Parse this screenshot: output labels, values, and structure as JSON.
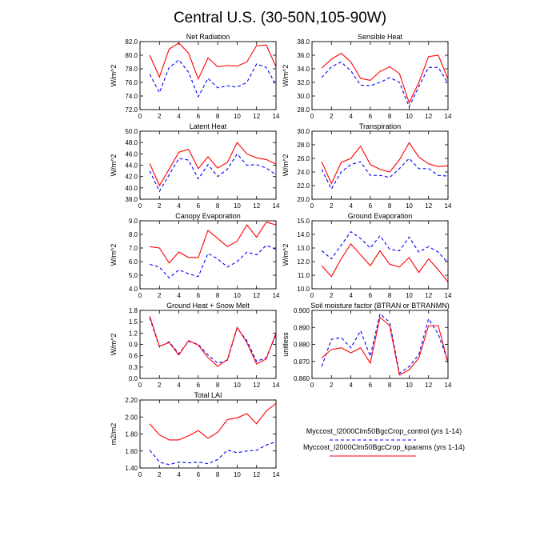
{
  "title": "Central U.S. (30-50N,105-90W)",
  "legend": [
    {
      "name": "Myccost_I2000Clm50BgcCrop_control (yrs 1-14)",
      "color": "#0000ff",
      "dashed": true
    },
    {
      "name": "Myccost_I2000Clm50BgcCrop_kparams (yrs 1-14)",
      "color": "#ff0000",
      "dashed": false
    }
  ],
  "chart_data": [
    {
      "type": "line",
      "title": "Net Radiation",
      "ylabel": "W/m^2",
      "x": [
        1,
        2,
        3,
        4,
        5,
        6,
        7,
        8,
        9,
        10,
        11,
        12,
        13,
        14
      ],
      "xlim": [
        0,
        14
      ],
      "xticks": [
        0,
        2,
        4,
        6,
        8,
        10,
        12,
        14
      ],
      "ylim": [
        72,
        82
      ],
      "yticks": [
        {
          "value": 72,
          "label": "72.0"
        },
        {
          "value": 74,
          "label": "74.0"
        },
        {
          "value": 76,
          "label": "76.0"
        },
        {
          "value": 78,
          "label": "78.0"
        },
        {
          "value": 80,
          "label": "80.0"
        },
        {
          "value": 82,
          "label": "82.0"
        }
      ],
      "series": [
        {
          "color": "#0000ff",
          "dashed": true,
          "values": [
            77.2,
            74.5,
            78.2,
            79.3,
            77.5,
            73.9,
            76.6,
            75.2,
            75.5,
            75.3,
            76.0,
            78.7,
            78.2,
            75.6
          ]
        },
        {
          "color": "#ff0000",
          "dashed": false,
          "values": [
            80.0,
            76.8,
            80.9,
            81.8,
            80.3,
            76.5,
            79.6,
            78.3,
            78.5,
            78.4,
            79.0,
            81.4,
            81.5,
            78.3
          ]
        }
      ]
    },
    {
      "type": "line",
      "title": "Sensible Heat",
      "ylabel": "W/m^2",
      "x": [
        1,
        2,
        3,
        4,
        5,
        6,
        7,
        8,
        9,
        10,
        11,
        12,
        13,
        14
      ],
      "xlim": [
        0,
        14
      ],
      "xticks": [
        0,
        2,
        4,
        6,
        8,
        10,
        12,
        14
      ],
      "ylim": [
        28,
        38
      ],
      "yticks": [
        {
          "value": 28,
          "label": "28.0"
        },
        {
          "value": 30,
          "label": "30.0"
        },
        {
          "value": 32,
          "label": "32.0"
        },
        {
          "value": 34,
          "label": "34.0"
        },
        {
          "value": 36,
          "label": "36.0"
        },
        {
          "value": 38,
          "label": "38.0"
        }
      ],
      "series": [
        {
          "color": "#0000ff",
          "dashed": true,
          "values": [
            32.7,
            34.3,
            35.0,
            33.7,
            31.6,
            31.5,
            32.0,
            32.7,
            32.0,
            28.4,
            31.4,
            34.2,
            34.2,
            31.9
          ]
        },
        {
          "color": "#ff0000",
          "dashed": false,
          "values": [
            34.1,
            35.4,
            36.3,
            35.0,
            32.6,
            32.3,
            33.6,
            34.3,
            33.3,
            29.0,
            32.0,
            35.8,
            36.0,
            32.5
          ]
        }
      ]
    },
    {
      "type": "line",
      "title": "Latent Heat",
      "ylabel": "W/m^2",
      "x": [
        1,
        2,
        3,
        4,
        5,
        6,
        7,
        8,
        9,
        10,
        11,
        12,
        13,
        14
      ],
      "xlim": [
        0,
        14
      ],
      "xticks": [
        0,
        2,
        4,
        6,
        8,
        10,
        12,
        14
      ],
      "ylim": [
        38,
        50
      ],
      "yticks": [
        {
          "value": 38,
          "label": "38.0"
        },
        {
          "value": 40,
          "label": "40.0"
        },
        {
          "value": 42,
          "label": "42.0"
        },
        {
          "value": 44,
          "label": "44.0"
        },
        {
          "value": 46,
          "label": "46.0"
        },
        {
          "value": 48,
          "label": "48.0"
        },
        {
          "value": 50,
          "label": "50.0"
        }
      ],
      "series": [
        {
          "color": "#0000ff",
          "dashed": true,
          "values": [
            43.0,
            39.4,
            42.3,
            45.2,
            44.9,
            41.6,
            44.1,
            42.0,
            43.3,
            46.0,
            44.0,
            44.1,
            43.5,
            42.3
          ]
        },
        {
          "color": "#ff0000",
          "dashed": false,
          "values": [
            44.3,
            40.4,
            43.3,
            46.3,
            46.8,
            43.4,
            45.5,
            43.5,
            44.5,
            48.0,
            46.0,
            45.3,
            45.0,
            44.2
          ]
        }
      ]
    },
    {
      "type": "line",
      "title": "Transpiration",
      "ylabel": "W/m^2",
      "x": [
        1,
        2,
        3,
        4,
        5,
        6,
        7,
        8,
        9,
        10,
        11,
        12,
        13,
        14
      ],
      "xlim": [
        0,
        14
      ],
      "xticks": [
        0,
        2,
        4,
        6,
        8,
        10,
        12,
        14
      ],
      "ylim": [
        20,
        30
      ],
      "yticks": [
        {
          "value": 20,
          "label": "20.0"
        },
        {
          "value": 22,
          "label": "22.0"
        },
        {
          "value": 24,
          "label": "24.0"
        },
        {
          "value": 26,
          "label": "26.0"
        },
        {
          "value": 28,
          "label": "28.0"
        },
        {
          "value": 30,
          "label": "30.0"
        }
      ],
      "series": [
        {
          "color": "#0000ff",
          "dashed": true,
          "values": [
            24.4,
            21.5,
            24.0,
            25.1,
            25.5,
            23.5,
            23.5,
            23.2,
            24.5,
            26.0,
            24.5,
            24.5,
            23.5,
            23.4
          ]
        },
        {
          "color": "#ff0000",
          "dashed": false,
          "values": [
            25.5,
            22.3,
            25.4,
            26.0,
            27.8,
            25.1,
            24.4,
            24.0,
            25.8,
            28.3,
            26.2,
            25.2,
            24.8,
            24.9
          ]
        }
      ]
    },
    {
      "type": "line",
      "title": "Canopy Evaporation",
      "ylabel": "W/m^2",
      "x": [
        1,
        2,
        3,
        4,
        5,
        6,
        7,
        8,
        9,
        10,
        11,
        12,
        13,
        14
      ],
      "xlim": [
        0,
        14
      ],
      "xticks": [
        0,
        2,
        4,
        6,
        8,
        10,
        12,
        14
      ],
      "ylim": [
        4,
        9
      ],
      "yticks": [
        {
          "value": 4,
          "label": "4.0"
        },
        {
          "value": 5,
          "label": "5.0"
        },
        {
          "value": 6,
          "label": "6.0"
        },
        {
          "value": 7,
          "label": "7.0"
        },
        {
          "value": 8,
          "label": "8.0"
        },
        {
          "value": 9,
          "label": "9.0"
        }
      ],
      "series": [
        {
          "color": "#0000ff",
          "dashed": true,
          "values": [
            5.8,
            5.6,
            4.8,
            5.4,
            5.1,
            4.9,
            6.6,
            6.2,
            5.6,
            6.0,
            6.7,
            6.5,
            7.2,
            6.9
          ]
        },
        {
          "color": "#ff0000",
          "dashed": false,
          "values": [
            7.1,
            7.0,
            5.9,
            6.7,
            6.3,
            6.3,
            8.3,
            7.7,
            7.1,
            7.5,
            8.7,
            7.8,
            8.9,
            8.7
          ]
        }
      ]
    },
    {
      "type": "line",
      "title": "Ground Evaporation",
      "ylabel": "W/m^2",
      "x": [
        1,
        2,
        3,
        4,
        5,
        6,
        7,
        8,
        9,
        10,
        11,
        12,
        13,
        14
      ],
      "xlim": [
        0,
        14
      ],
      "xticks": [
        0,
        2,
        4,
        6,
        8,
        10,
        12,
        14
      ],
      "ylim": [
        10,
        15
      ],
      "yticks": [
        {
          "value": 10,
          "label": "10.0"
        },
        {
          "value": 11,
          "label": "11.0"
        },
        {
          "value": 12,
          "label": "12.0"
        },
        {
          "value": 13,
          "label": "13.0"
        },
        {
          "value": 14,
          "label": "14.0"
        },
        {
          "value": 15,
          "label": "15.0"
        }
      ],
      "series": [
        {
          "color": "#0000ff",
          "dashed": true,
          "values": [
            12.8,
            12.2,
            13.2,
            14.2,
            13.7,
            13.0,
            13.9,
            12.9,
            12.8,
            13.8,
            12.7,
            13.1,
            12.7,
            11.9
          ]
        },
        {
          "color": "#ff0000",
          "dashed": false,
          "values": [
            11.7,
            10.9,
            12.2,
            13.3,
            12.5,
            11.7,
            12.8,
            11.8,
            11.6,
            12.3,
            11.2,
            12.2,
            11.4,
            10.5
          ]
        }
      ]
    },
    {
      "type": "line",
      "title": "Ground Heat + Snow Melt",
      "ylabel": "W/m^2",
      "x": [
        1,
        2,
        3,
        4,
        5,
        6,
        7,
        8,
        9,
        10,
        11,
        12,
        13,
        14
      ],
      "xlim": [
        0,
        14
      ],
      "xticks": [
        0,
        2,
        4,
        6,
        8,
        10,
        12,
        14
      ],
      "ylim": [
        0,
        1.8
      ],
      "yticks": [
        {
          "value": 0,
          "label": "0.0"
        },
        {
          "value": 0.3,
          "label": "0.3"
        },
        {
          "value": 0.6,
          "label": "0.6"
        },
        {
          "value": 0.9,
          "label": "0.9"
        },
        {
          "value": 1.2,
          "label": "1.2"
        },
        {
          "value": 1.5,
          "label": "1.5"
        },
        {
          "value": 1.8,
          "label": "1.8"
        }
      ],
      "series": [
        {
          "color": "#0000ff",
          "dashed": true,
          "values": [
            1.6,
            0.83,
            0.97,
            0.65,
            0.98,
            0.9,
            0.62,
            0.4,
            0.48,
            1.33,
            1.0,
            0.45,
            0.55,
            1.15
          ]
        },
        {
          "color": "#ff0000",
          "dashed": false,
          "values": [
            1.65,
            0.85,
            0.95,
            0.62,
            1.0,
            0.88,
            0.55,
            0.32,
            0.5,
            1.35,
            0.95,
            0.38,
            0.52,
            1.2
          ]
        }
      ]
    },
    {
      "type": "line",
      "title": "Soil moisture factor (BTRAN or BTRANMN)",
      "ylabel": "unitless",
      "x": [
        1,
        2,
        3,
        4,
        5,
        6,
        7,
        8,
        9,
        10,
        11,
        12,
        13,
        14
      ],
      "xlim": [
        0,
        14
      ],
      "xticks": [
        0,
        2,
        4,
        6,
        8,
        10,
        12,
        14
      ],
      "ylim": [
        0.86,
        0.9
      ],
      "yticks": [
        {
          "value": 0.86,
          "label": "0.860"
        },
        {
          "value": 0.87,
          "label": "0.870"
        },
        {
          "value": 0.88,
          "label": "0.880"
        },
        {
          "value": 0.89,
          "label": "0.890"
        },
        {
          "value": 0.9,
          "label": "0.900"
        }
      ],
      "series": [
        {
          "color": "#0000ff",
          "dashed": true,
          "values": [
            0.867,
            0.883,
            0.884,
            0.878,
            0.888,
            0.873,
            0.898,
            0.893,
            0.863,
            0.867,
            0.874,
            0.895,
            0.886,
            0.87
          ]
        },
        {
          "color": "#ff0000",
          "dashed": false,
          "values": [
            0.872,
            0.877,
            0.878,
            0.875,
            0.878,
            0.869,
            0.896,
            0.891,
            0.862,
            0.865,
            0.872,
            0.891,
            0.891,
            0.869
          ]
        }
      ]
    },
    {
      "type": "line",
      "title": "Total LAI",
      "ylabel": "m2/m2",
      "x": [
        1,
        2,
        3,
        4,
        5,
        6,
        7,
        8,
        9,
        10,
        11,
        12,
        13,
        14
      ],
      "xlim": [
        0,
        14
      ],
      "xticks": [
        0,
        2,
        4,
        6,
        8,
        10,
        12,
        14
      ],
      "ylim": [
        1.4,
        2.2
      ],
      "yticks": [
        {
          "value": 1.4,
          "label": "1.40"
        },
        {
          "value": 1.6,
          "label": "1.60"
        },
        {
          "value": 1.8,
          "label": "1.80"
        },
        {
          "value": 2.0,
          "label": "2.00"
        },
        {
          "value": 2.2,
          "label": "2.20"
        }
      ],
      "series": [
        {
          "color": "#0000ff",
          "dashed": true,
          "values": [
            1.61,
            1.47,
            1.44,
            1.47,
            1.46,
            1.47,
            1.45,
            1.5,
            1.61,
            1.58,
            1.6,
            1.61,
            1.67,
            1.71
          ]
        },
        {
          "color": "#ff0000",
          "dashed": false,
          "values": [
            1.92,
            1.79,
            1.73,
            1.73,
            1.78,
            1.84,
            1.75,
            1.82,
            1.97,
            1.99,
            2.04,
            1.92,
            2.07,
            2.16
          ]
        }
      ]
    }
  ]
}
